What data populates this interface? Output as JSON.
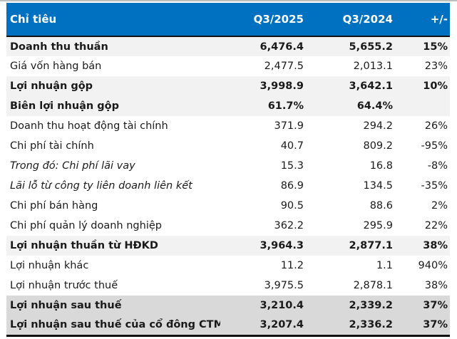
{
  "table": {
    "header": {
      "label": "Chỉ tiêu",
      "q3_2025": "Q3/2025",
      "q3_2024": "Q3/2024",
      "change": "+/-"
    },
    "colors": {
      "header_bg": "#0070C0",
      "header_text": "#FFFFFF",
      "highlight_light": "#F2F2F2",
      "highlight_dark": "#D9D9D9"
    },
    "rows": [
      {
        "label": "Doanh thu thuần",
        "q3_2025": "6,476.4",
        "q3_2024": "5,655.2",
        "change": "15%"
      },
      {
        "label": "Giá vốn hàng bán",
        "q3_2025": "2,477.5",
        "q3_2024": "2,013.1",
        "change": "23%"
      },
      {
        "label": "Lợi nhuận gộp",
        "q3_2025": "3,998.9",
        "q3_2024": "3,642.1",
        "change": "10%"
      },
      {
        "label": "Biên lợi nhuận gộp",
        "q3_2025": "61.7%",
        "q3_2024": "64.4%",
        "change": ""
      },
      {
        "label": "Doanh thu hoạt động tài chính",
        "q3_2025": "371.9",
        "q3_2024": "294.2",
        "change": "26%"
      },
      {
        "label": "Chi phí tài chính",
        "q3_2025": "40.7",
        "q3_2024": "809.2",
        "change": "-95%"
      },
      {
        "label": "Trong đó: Chi phí lãi vay",
        "q3_2025": "15.3",
        "q3_2024": "16.8",
        "change": "-8%"
      },
      {
        "label": "Lãi lỗ từ công ty liên doanh liên kết",
        "q3_2025": "86.9",
        "q3_2024": "134.5",
        "change": "-35%"
      },
      {
        "label": "Chi phí bán hàng",
        "q3_2025": "90.5",
        "q3_2024": "88.6",
        "change": "2%"
      },
      {
        "label": "Chi phí quản lý doanh nghiệp",
        "q3_2025": "362.2",
        "q3_2024": "295.9",
        "change": "22%"
      },
      {
        "label": "Lợi nhuận thuần từ HĐKD",
        "q3_2025": "3,964.3",
        "q3_2024": "2,877.1",
        "change": "38%"
      },
      {
        "label": "Lợi nhuận khác",
        "q3_2025": "11.2",
        "q3_2024": "1.1",
        "change": "940%"
      },
      {
        "label": "Lợi nhuận trước thuế",
        "q3_2025": "3,975.5",
        "q3_2024": "2,878.1",
        "change": "38%"
      },
      {
        "label": "Lợi nhuận sau thuế",
        "q3_2025": "3,210.4",
        "q3_2024": "2,339.2",
        "change": "37%"
      },
      {
        "label": "Lợi nhuận sau thuế của cổ đông CTM",
        "q3_2025": "3,207.4",
        "q3_2024": "2,336.2",
        "change": "37%"
      }
    ]
  }
}
